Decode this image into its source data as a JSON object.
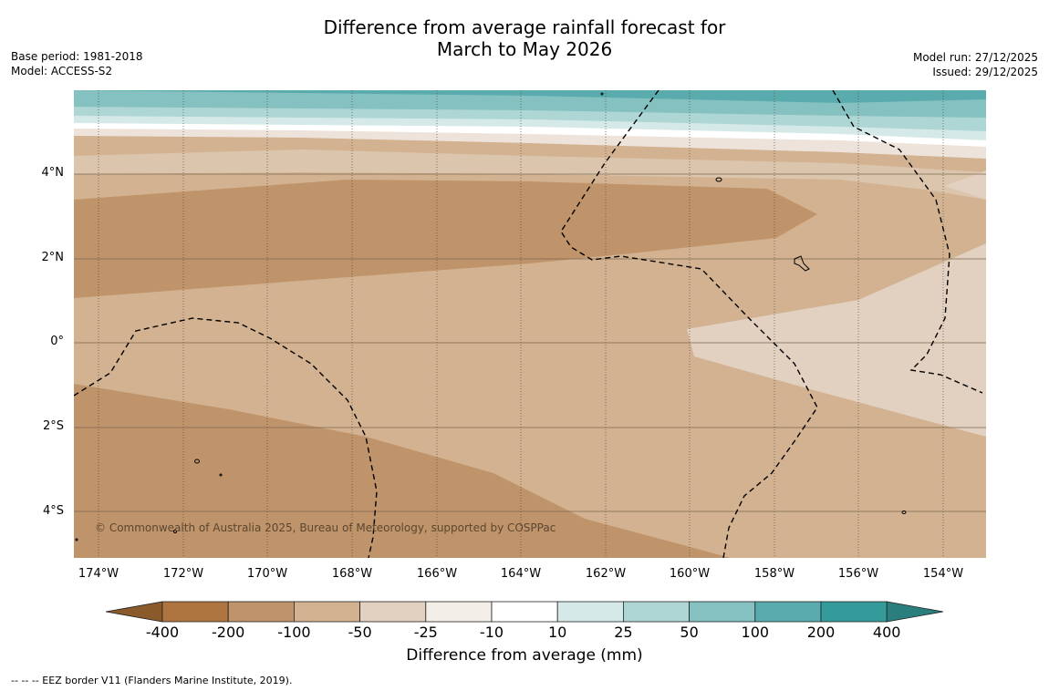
{
  "title": {
    "line1": "Difference from average rainfall forecast for",
    "line2": "March to May 2026"
  },
  "meta_left": {
    "base_period": "Base period: 1981-2018",
    "model": "Model: ACCESS-S2"
  },
  "meta_right": {
    "model_run": "Model run: 27/12/2025",
    "issued": "Issued: 29/12/2025"
  },
  "map": {
    "lat_labels": [
      "4°N",
      "2°N",
      "0°",
      "2°S",
      "4°S"
    ],
    "lon_labels": [
      "174°W",
      "172°W",
      "170°W",
      "168°W",
      "166°W",
      "164°W",
      "162°W",
      "160°W",
      "158°W",
      "156°W",
      "154°W"
    ],
    "copyright": "© Commonwealth of Australia 2025, Bureau of Meteorology, supported by COSPPac"
  },
  "colorbar": {
    "ticks": [
      "-400",
      "-200",
      "-100",
      "-50",
      "-25",
      "-10",
      "10",
      "25",
      "50",
      "100",
      "200",
      "400"
    ],
    "colors": [
      "#8a5a2b",
      "#ae7541",
      "#c0946a",
      "#d2b290",
      "#e2d1c0",
      "#f3eee7",
      "#ffffff",
      "#d5eae8",
      "#aed6d5",
      "#84c1c0",
      "#5aabad",
      "#359b9a",
      "#2a7f7e"
    ],
    "label": "Difference from average (mm)"
  },
  "legend_note": "--  --  -- EEZ border V11 (Flanders Marine Institute, 2019)."
}
